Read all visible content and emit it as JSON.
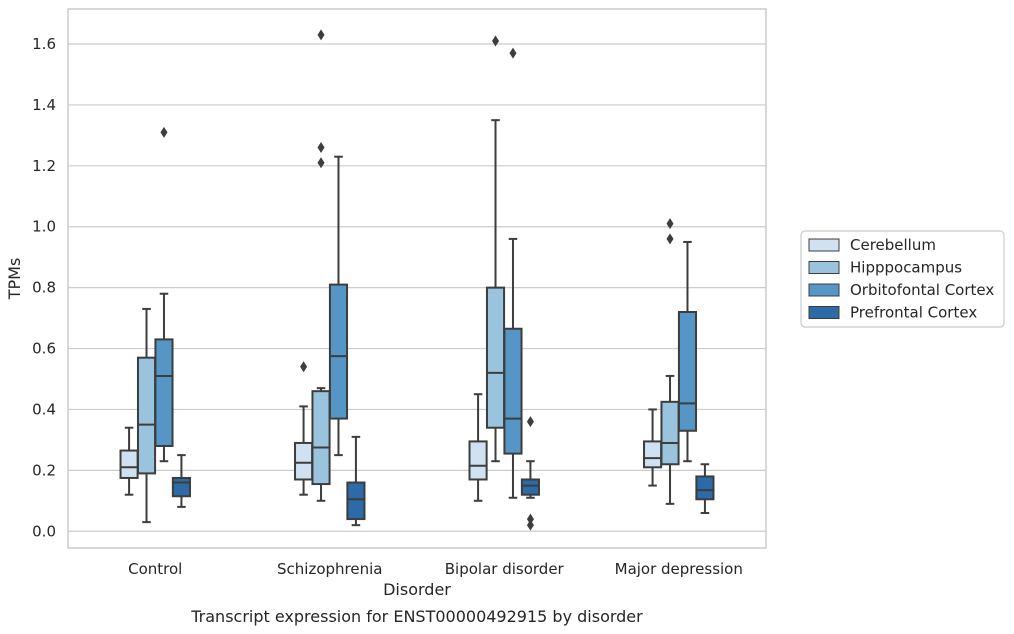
{
  "chart_data": {
    "type": "box",
    "caption": "Transcript expression for ENST00000492915 by disorder",
    "xlabel": "Disorder",
    "ylabel": "TPMs",
    "ylim": [
      -0.055,
      1.715
    ],
    "yticks": [
      0.0,
      0.2,
      0.4,
      0.6,
      0.8,
      1.0,
      1.2,
      1.4,
      1.6
    ],
    "ytick_labels": [
      "0.0",
      "0.2",
      "0.4",
      "0.6",
      "0.8",
      "1.0",
      "1.2",
      "1.4",
      "1.6"
    ],
    "grid": true,
    "legend_position": "right",
    "categories": [
      "Control",
      "Schizophrenia",
      "Bipolar disorder",
      "Major depression"
    ],
    "series": [
      {
        "name": "Cerebellum",
        "color": "#d0e1f2",
        "boxes": [
          {
            "whislo": 0.12,
            "q1": 0.175,
            "med": 0.21,
            "q3": 0.265,
            "whishi": 0.34,
            "fliers": []
          },
          {
            "whislo": 0.12,
            "q1": 0.17,
            "med": 0.225,
            "q3": 0.29,
            "whishi": 0.41,
            "fliers": [
              0.54
            ]
          },
          {
            "whislo": 0.1,
            "q1": 0.17,
            "med": 0.215,
            "q3": 0.295,
            "whishi": 0.45,
            "fliers": []
          },
          {
            "whislo": 0.15,
            "q1": 0.21,
            "med": 0.24,
            "q3": 0.295,
            "whishi": 0.4,
            "fliers": []
          }
        ]
      },
      {
        "name": "Hipppocampus",
        "color": "#9ac3dd",
        "boxes": [
          {
            "whislo": 0.03,
            "q1": 0.19,
            "med": 0.35,
            "q3": 0.57,
            "whishi": 0.73,
            "fliers": []
          },
          {
            "whislo": 0.1,
            "q1": 0.155,
            "med": 0.275,
            "q3": 0.46,
            "whishi": 0.47,
            "fliers": [
              1.21,
              1.26,
              1.63
            ]
          },
          {
            "whislo": 0.23,
            "q1": 0.34,
            "med": 0.52,
            "q3": 0.8,
            "whishi": 1.35,
            "fliers": [
              1.61
            ]
          },
          {
            "whislo": 0.09,
            "q1": 0.22,
            "med": 0.29,
            "q3": 0.425,
            "whishi": 0.51,
            "fliers": [
              0.96,
              1.01
            ]
          }
        ]
      },
      {
        "name": "Orbitofontal Cortex",
        "color": "#5596c6",
        "boxes": [
          {
            "whislo": 0.23,
            "q1": 0.28,
            "med": 0.51,
            "q3": 0.63,
            "whishi": 0.78,
            "fliers": [
              1.31
            ]
          },
          {
            "whislo": 0.25,
            "q1": 0.37,
            "med": 0.575,
            "q3": 0.81,
            "whishi": 1.23,
            "fliers": []
          },
          {
            "whislo": 0.11,
            "q1": 0.255,
            "med": 0.37,
            "q3": 0.665,
            "whishi": 0.96,
            "fliers": [
              1.57
            ]
          },
          {
            "whislo": 0.23,
            "q1": 0.33,
            "med": 0.42,
            "q3": 0.72,
            "whishi": 0.95,
            "fliers": []
          }
        ]
      },
      {
        "name": "Prefrontal Cortex",
        "color": "#2c6aa8",
        "boxes": [
          {
            "whislo": 0.08,
            "q1": 0.115,
            "med": 0.16,
            "q3": 0.175,
            "whishi": 0.25,
            "fliers": []
          },
          {
            "whislo": 0.02,
            "q1": 0.04,
            "med": 0.105,
            "q3": 0.16,
            "whishi": 0.31,
            "fliers": []
          },
          {
            "whislo": 0.11,
            "q1": 0.12,
            "med": 0.15,
            "q3": 0.17,
            "whishi": 0.23,
            "fliers": [
              0.02,
              0.04,
              0.36
            ]
          },
          {
            "whislo": 0.06,
            "q1": 0.105,
            "med": 0.135,
            "q3": 0.18,
            "whishi": 0.22,
            "fliers": []
          }
        ]
      }
    ]
  }
}
